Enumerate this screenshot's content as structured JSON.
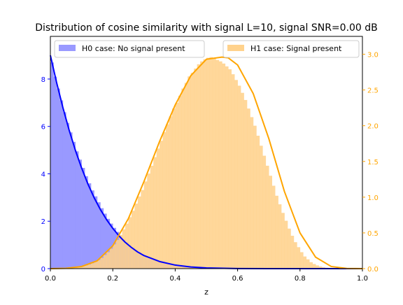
{
  "chart_data": {
    "type": "bar",
    "title": "Distribution of cosine similarity with signal L=10, signal SNR=0.00 dB",
    "xlabel": "z",
    "xlim": [
      0.0,
      1.0
    ],
    "xticks": [
      "0.0",
      "0.2",
      "0.4",
      "0.6",
      "0.8",
      "1.0"
    ],
    "y_left": {
      "ylim": [
        0,
        9.8
      ],
      "ticks": [
        "0",
        "2",
        "4",
        "6",
        "8"
      ],
      "color": "#0000ff"
    },
    "y_right": {
      "ylim": [
        0,
        3.25
      ],
      "ticks": [
        "0.0",
        "0.5",
        "1.0",
        "1.5",
        "2.0",
        "2.5",
        "3.0"
      ],
      "color": "#ffa500"
    },
    "legend_left": {
      "label": "H0 case: No signal present",
      "placement": "upper-left"
    },
    "legend_right": {
      "label": "H1 case: Signal present",
      "placement": "upper-right"
    },
    "series": [
      {
        "name": "H0 case: No signal present",
        "axis": "left",
        "bar_color": "#9999ff",
        "line_color": "#0000ff",
        "bin_width": 0.01,
        "x": [
          0.0,
          0.01,
          0.02,
          0.03,
          0.04,
          0.05,
          0.06,
          0.07,
          0.08,
          0.09,
          0.1,
          0.11,
          0.12,
          0.13,
          0.14,
          0.15,
          0.16,
          0.17,
          0.18,
          0.19,
          0.2,
          0.21,
          0.22,
          0.23,
          0.24,
          0.25,
          0.26,
          0.27,
          0.28,
          0.29,
          0.3,
          0.31,
          0.32,
          0.33,
          0.34,
          0.35,
          0.36,
          0.37,
          0.38,
          0.39,
          0.4,
          0.41,
          0.42,
          0.43,
          0.44,
          0.45,
          0.46,
          0.47,
          0.48,
          0.49,
          0.5,
          0.51,
          0.52,
          0.53,
          0.54,
          0.55,
          0.56,
          0.57,
          0.58,
          0.59,
          0.6,
          0.62,
          0.64,
          0.66,
          0.68,
          0.7
        ],
        "values": [
          8.7,
          8.1,
          7.6,
          7.1,
          6.6,
          6.15,
          5.75,
          5.35,
          4.95,
          4.6,
          4.25,
          3.9,
          3.6,
          3.3,
          3.05,
          2.8,
          2.55,
          2.32,
          2.1,
          1.9,
          1.72,
          1.55,
          1.39,
          1.25,
          1.12,
          1.0,
          0.89,
          0.79,
          0.7,
          0.62,
          0.55,
          0.48,
          0.42,
          0.37,
          0.32,
          0.28,
          0.24,
          0.21,
          0.18,
          0.155,
          0.13,
          0.11,
          0.095,
          0.08,
          0.068,
          0.056,
          0.047,
          0.039,
          0.032,
          0.026,
          0.021,
          0.017,
          0.014,
          0.011,
          0.009,
          0.007,
          0.005,
          0.004,
          0.003,
          0.002,
          0.0015,
          0.001,
          0.0006,
          0.0004,
          0.0002,
          0.0001
        ],
        "curve_x": [
          0.0,
          0.02,
          0.04,
          0.06,
          0.08,
          0.1,
          0.12,
          0.14,
          0.16,
          0.18,
          0.2,
          0.22,
          0.24,
          0.26,
          0.28,
          0.3,
          0.35,
          0.4,
          0.45,
          0.5,
          0.6,
          0.7,
          0.8,
          0.9,
          1.0
        ],
        "curve_y": [
          9.0,
          7.85,
          6.8,
          5.85,
          5.0,
          4.25,
          3.58,
          3.0,
          2.5,
          2.07,
          1.7,
          1.38,
          1.11,
          0.89,
          0.7,
          0.55,
          0.3,
          0.15,
          0.07,
          0.03,
          0.005,
          0.0007,
          0.0001,
          0.0,
          0.0
        ]
      },
      {
        "name": "H1 case: Signal present",
        "axis": "right",
        "bar_color": "#ffd28c",
        "line_color": "#ffa500",
        "bin_width": 0.01,
        "x": [
          0.0,
          0.01,
          0.02,
          0.03,
          0.04,
          0.05,
          0.06,
          0.07,
          0.08,
          0.09,
          0.1,
          0.11,
          0.12,
          0.13,
          0.14,
          0.15,
          0.16,
          0.17,
          0.18,
          0.19,
          0.2,
          0.21,
          0.22,
          0.23,
          0.24,
          0.25,
          0.26,
          0.27,
          0.28,
          0.29,
          0.3,
          0.31,
          0.32,
          0.33,
          0.34,
          0.35,
          0.36,
          0.37,
          0.38,
          0.39,
          0.4,
          0.41,
          0.42,
          0.43,
          0.44,
          0.45,
          0.46,
          0.47,
          0.48,
          0.49,
          0.5,
          0.51,
          0.52,
          0.53,
          0.54,
          0.55,
          0.56,
          0.57,
          0.58,
          0.59,
          0.6,
          0.61,
          0.62,
          0.63,
          0.64,
          0.65,
          0.66,
          0.67,
          0.68,
          0.69,
          0.7,
          0.71,
          0.72,
          0.73,
          0.74,
          0.75,
          0.76,
          0.77,
          0.78,
          0.79,
          0.8,
          0.81,
          0.82,
          0.83,
          0.84,
          0.85,
          0.86,
          0.87,
          0.88,
          0.89,
          0.9,
          0.91,
          0.92,
          0.93,
          0.94,
          0.95,
          0.96,
          0.97,
          0.98,
          0.99
        ],
        "values": [
          0.0,
          0.0,
          0.001,
          0.002,
          0.003,
          0.005,
          0.008,
          0.012,
          0.017,
          0.024,
          0.033,
          0.044,
          0.058,
          0.075,
          0.096,
          0.12,
          0.15,
          0.19,
          0.23,
          0.28,
          0.34,
          0.4,
          0.47,
          0.55,
          0.63,
          0.72,
          0.81,
          0.91,
          1.01,
          1.1,
          1.22,
          1.33,
          1.44,
          1.56,
          1.68,
          1.79,
          1.91,
          2.02,
          2.13,
          2.24,
          2.32,
          2.42,
          2.52,
          2.6,
          2.69,
          2.74,
          2.8,
          2.86,
          2.9,
          2.93,
          2.95,
          2.96,
          2.95,
          2.92,
          2.9,
          2.87,
          2.83,
          2.79,
          2.72,
          2.64,
          2.56,
          2.46,
          2.36,
          2.24,
          2.12,
          2.0,
          1.86,
          1.72,
          1.58,
          1.44,
          1.3,
          1.16,
          1.02,
          0.9,
          0.78,
          0.67,
          0.56,
          0.46,
          0.37,
          0.3,
          0.23,
          0.17,
          0.13,
          0.09,
          0.065,
          0.045,
          0.03,
          0.019,
          0.012,
          0.007,
          0.004,
          0.002,
          0.001,
          0.0,
          0.0,
          0.0,
          0.0,
          0.0,
          0.0,
          0.0
        ],
        "curve_x": [
          0.0,
          0.05,
          0.1,
          0.15,
          0.2,
          0.25,
          0.3,
          0.35,
          0.4,
          0.45,
          0.5,
          0.55,
          0.57,
          0.6,
          0.65,
          0.7,
          0.75,
          0.8,
          0.85,
          0.9,
          0.95,
          1.0
        ],
        "curve_y": [
          0.0,
          0.005,
          0.03,
          0.11,
          0.32,
          0.7,
          1.22,
          1.78,
          2.29,
          2.7,
          2.93,
          2.96,
          2.95,
          2.85,
          2.45,
          1.82,
          1.08,
          0.5,
          0.16,
          0.03,
          0.002,
          0.0
        ]
      }
    ]
  }
}
